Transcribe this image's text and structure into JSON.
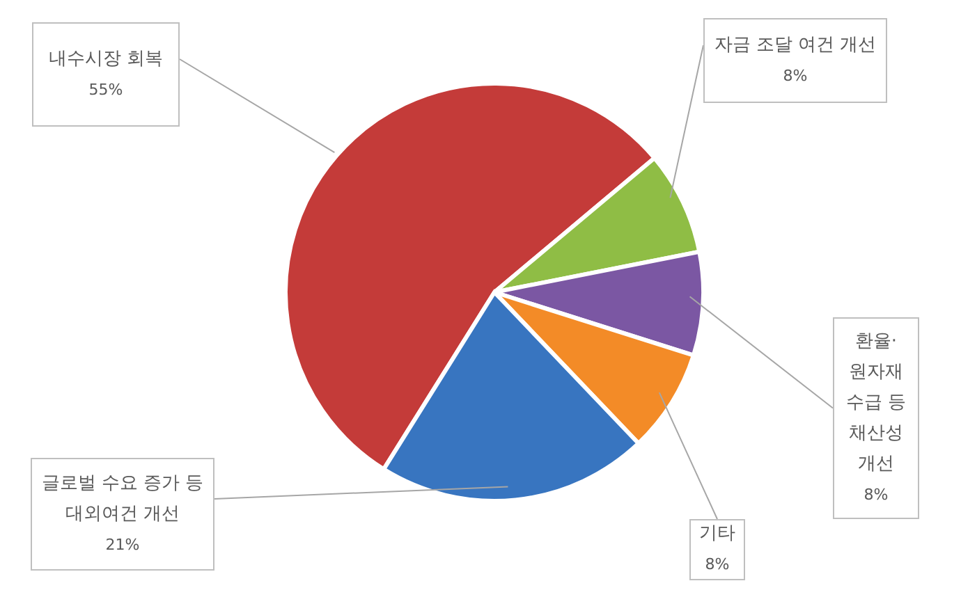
{
  "chart_data": {
    "type": "pie",
    "categories": [
      "내수시장 회복",
      "자금 조달 여건 개선",
      "환율·원자재 수급 등 채산성 개선",
      "기타",
      "글로벌 수요 증가 등 대외여건 개선"
    ],
    "values": [
      55,
      8,
      8,
      8,
      21
    ],
    "colors": [
      "#c43b39",
      "#8fbd45",
      "#7b57a3",
      "#f38b27",
      "#3875c0"
    ],
    "value_labels": [
      "55%",
      "8%",
      "8%",
      "8%",
      "21%"
    ]
  }
}
